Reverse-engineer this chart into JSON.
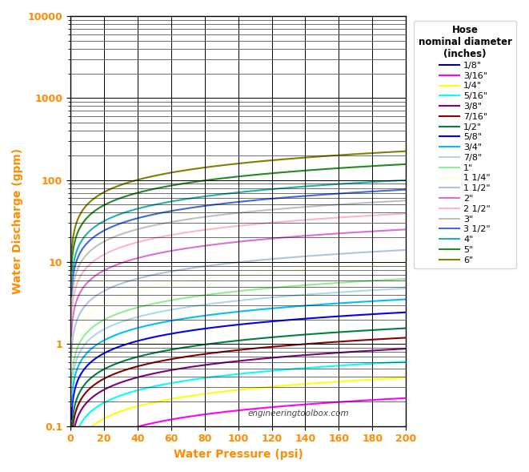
{
  "xlabel": "Water Pressure (psi)",
  "ylabel": "Water Discharge (gpm)",
  "legend_title": "Hose\nnominal diameter\n(inches)",
  "watermark": "engineeringtoolbox.com",
  "xlim": [
    0,
    200
  ],
  "ylim_log": [
    0.1,
    10000
  ],
  "series": [
    {
      "label": "1/8\"",
      "color": "#000080",
      "diameter_in": 0.125
    },
    {
      "label": "3/16\"",
      "color": "#FF00FF",
      "diameter_in": 0.1875
    },
    {
      "label": "1/4\"",
      "color": "#FFFF00",
      "diameter_in": 0.25
    },
    {
      "label": "5/16\"",
      "color": "#00FFFF",
      "diameter_in": 0.3125
    },
    {
      "label": "3/8\"",
      "color": "#800080",
      "diameter_in": 0.375
    },
    {
      "label": "7/16\"",
      "color": "#8B0000",
      "diameter_in": 0.4375
    },
    {
      "label": "1/2\"",
      "color": "#008040",
      "diameter_in": 0.5
    },
    {
      "label": "5/8\"",
      "color": "#0000FF",
      "diameter_in": 0.625
    },
    {
      "label": "3/4\"",
      "color": "#00BFFF",
      "diameter_in": 0.75
    },
    {
      "label": "7/8\"",
      "color": "#ADD8E6",
      "diameter_in": 0.875
    },
    {
      "label": "1\"",
      "color": "#90EE90",
      "diameter_in": 1.0
    },
    {
      "label": "1 1/4\"",
      "color": "#FFFFE0",
      "diameter_in": 1.25
    },
    {
      "label": "1 1/2\"",
      "color": "#B0C4DE",
      "diameter_in": 1.5
    },
    {
      "label": "2\"",
      "color": "#DA70D6",
      "diameter_in": 2.0
    },
    {
      "label": "2 1/2\"",
      "color": "#FFB6C1",
      "diameter_in": 2.5
    },
    {
      "label": "3\"",
      "color": "#C0C0C0",
      "diameter_in": 3.0
    },
    {
      "label": "3 1/2\"",
      "color": "#4169E1",
      "diameter_in": 3.5
    },
    {
      "label": "4\"",
      "color": "#20B2AA",
      "diameter_in": 4.0
    },
    {
      "label": "5\"",
      "color": "#228B22",
      "diameter_in": 5.0
    },
    {
      "label": "6\"",
      "color": "#808000",
      "diameter_in": 6.0
    }
  ],
  "bg_color": "#FFFFFF",
  "grid_color": "#000000",
  "label_color": "#FF8C00",
  "axis_label_fontsize": 10,
  "tick_fontsize": 9,
  "legend_fontsize": 8,
  "flow_coeff": 0.4418,
  "figwidth": 6.61,
  "figheight": 5.89,
  "dpi": 100
}
